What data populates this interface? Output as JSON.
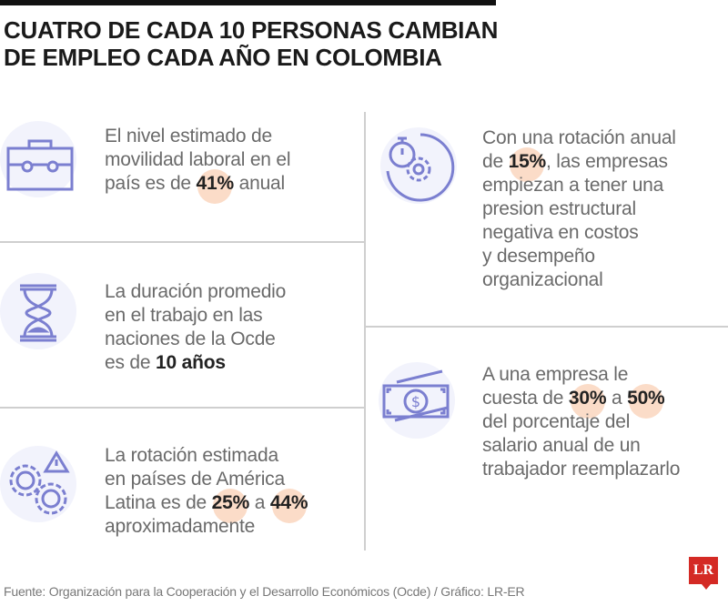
{
  "title": {
    "line1": "CUATRO DE CADA 10 PERSONAS CAMBIAN",
    "line2": "DE EMPLEO CADA AÑO EN COLOMBIA"
  },
  "colors": {
    "icon": "#7b7fd0",
    "highlight": "#fbdcc8",
    "logo": "#d42a24"
  },
  "items": {
    "movilidad": {
      "icon": "briefcase-icon",
      "l1": "El  nivel estimado de",
      "l2": "movilidad laboral en el",
      "l3a": "país es de ",
      "b1": "41%",
      "l3b": " anual"
    },
    "duracion": {
      "icon": "hourglass-icon",
      "l1": "La duración promedio",
      "l2": "en el trabajo en las",
      "l3": "naciones de la Ocde",
      "l4a": "es de ",
      "b1": "10 años"
    },
    "rotacion_al": {
      "icon": "gears-people-warning-icon",
      "l1": "La rotación estimada",
      "l2": "en países de América",
      "l3a": "Latina es de ",
      "b1": "25%",
      "l3b": " a ",
      "b2": "44%",
      "l4": "aproximadamente"
    },
    "rotacion_anual": {
      "icon": "stopwatch-gear-icon",
      "l1": "Con una rotación anual",
      "l2a": "de ",
      "b1": "15%",
      "l2b": ", las empresas",
      "l3": "empiezan a tener una",
      "l4": "presion estructural",
      "l5": "negativa en costos",
      "l6": "y desempeño",
      "l7": "organizacional"
    },
    "costo": {
      "icon": "money-icon",
      "l1": "A una empresa le",
      "l2a": "cuesta de ",
      "b1": "30%",
      "l2b": " a ",
      "b2": "50%",
      "l3": "del porcentaje del",
      "l4": "salario anual de un",
      "l5": "trabajador reemplazarlo"
    }
  },
  "footer": {
    "source": "Fuente: Organización para la Cooperación y el Desarrollo Económicos (Ocde) / Gráfico: LR-ER",
    "logo": "LR"
  }
}
